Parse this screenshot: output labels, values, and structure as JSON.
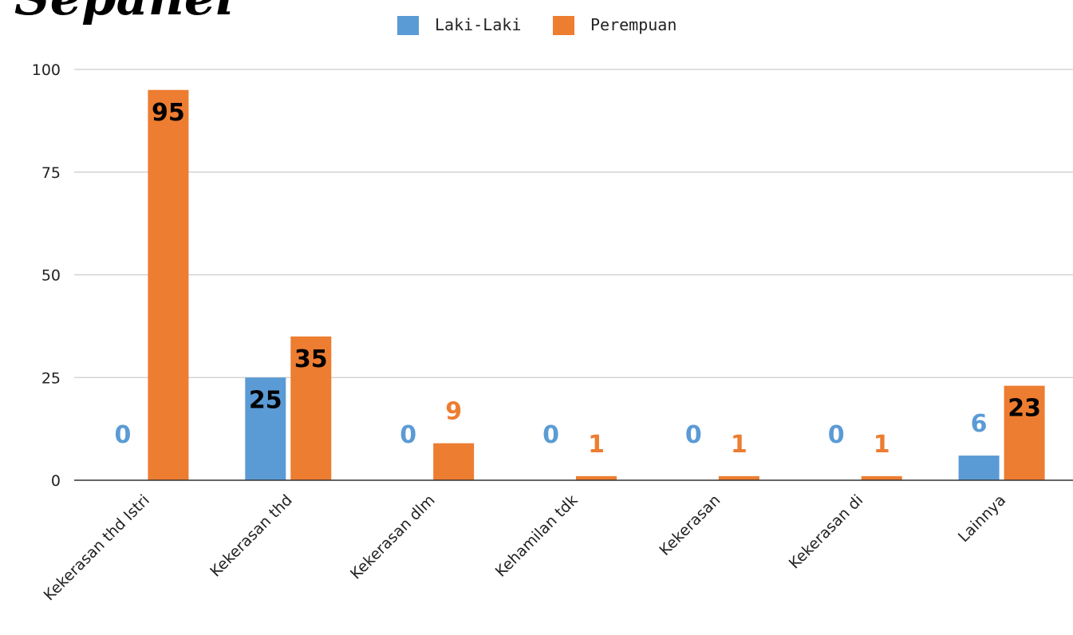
{
  "chart_data": {
    "type": "bar",
    "title": "Sepanel",
    "categories": [
      "Kekerasan thd Istri",
      "Kekerasan thd",
      "Kekerasan dlm",
      "Kehamilan tdk",
      "Kekerasan",
      "Kekerasan di",
      "Lainnya"
    ],
    "series": [
      {
        "name": "Laki-Laki",
        "color": "#5b9bd5",
        "values": [
          0,
          25,
          0,
          0,
          0,
          0,
          6
        ]
      },
      {
        "name": "Perempuan",
        "color": "#ed7d31",
        "values": [
          95,
          35,
          9,
          1,
          1,
          1,
          23
        ]
      }
    ],
    "yticks": [
      0,
      25,
      50,
      75,
      100
    ],
    "ylim": [
      0,
      100
    ],
    "grid": true,
    "legend": "top-center",
    "xlabel": "",
    "ylabel": ""
  }
}
